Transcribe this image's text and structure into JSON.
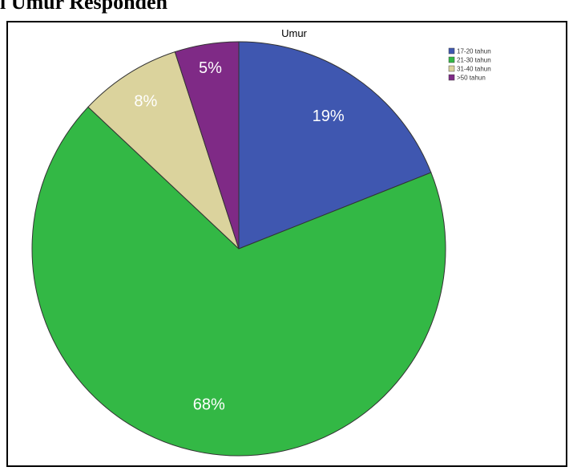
{
  "page": {
    "heading_fragment": "l Umur Responden"
  },
  "chart_data": {
    "type": "pie",
    "title": "Umur",
    "start_angle_deg": 0,
    "direction": "clockwise",
    "slices": [
      {
        "label": "17-20 tahun",
        "value": 19,
        "display": "19%",
        "color": "#3f57b0"
      },
      {
        "label": "21-30 tahun",
        "value": 68,
        "display": "68%",
        "color": "#33b845"
      },
      {
        "label": "31-40 tahun",
        "value": 8,
        "display": "8%",
        "color": "#dbd39d"
      },
      {
        "label": ">50 tahun",
        "value": 5,
        "display": "5%",
        "color": "#7f2a86"
      }
    ],
    "legend": {
      "position": "top-right"
    },
    "colors": {
      "label_text": "#ffffff",
      "slice_border": "#333333"
    }
  }
}
